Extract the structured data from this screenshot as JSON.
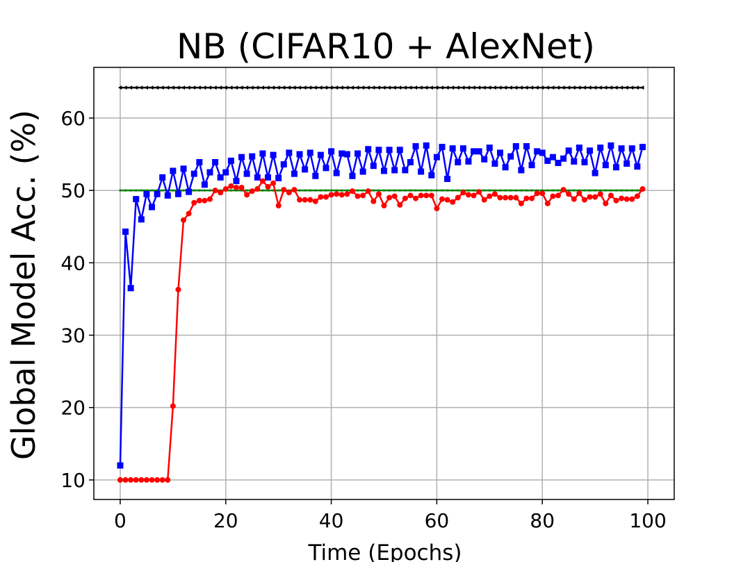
{
  "chart_data": {
    "type": "line",
    "title": "NB (CIFAR10 + AlexNet)",
    "x_label": "Time (Epochs)",
    "y_label": "Global Model Acc. (%)",
    "x": [
      0,
      1,
      2,
      3,
      4,
      5,
      6,
      7,
      8,
      9,
      10,
      11,
      12,
      13,
      14,
      15,
      16,
      17,
      18,
      19,
      20,
      21,
      22,
      23,
      24,
      25,
      26,
      27,
      28,
      29,
      30,
      31,
      32,
      33,
      34,
      35,
      36,
      37,
      38,
      39,
      40,
      41,
      42,
      43,
      44,
      45,
      46,
      47,
      48,
      49,
      50,
      51,
      52,
      53,
      54,
      55,
      56,
      57,
      58,
      59,
      60,
      61,
      62,
      63,
      64,
      65,
      66,
      67,
      68,
      69,
      70,
      71,
      72,
      73,
      74,
      75,
      76,
      77,
      78,
      79,
      80,
      81,
      82,
      83,
      84,
      85,
      86,
      87,
      88,
      89,
      90,
      91,
      92,
      93,
      94,
      95,
      96,
      97,
      98,
      99
    ],
    "xlim": [
      -5,
      105
    ],
    "xticks": [
      0,
      20,
      40,
      60,
      80,
      100
    ],
    "ylim": [
      7.3,
      67.0
    ],
    "yticks": [
      10,
      20,
      30,
      40,
      50,
      60
    ],
    "grid": true,
    "series": [
      {
        "color": "#000000",
        "marker": "triangle-left",
        "values": [
          64.2,
          64.2,
          64.2,
          64.2,
          64.2,
          64.2,
          64.2,
          64.2,
          64.2,
          64.2,
          64.2,
          64.2,
          64.2,
          64.2,
          64.2,
          64.2,
          64.2,
          64.2,
          64.2,
          64.2,
          64.2,
          64.2,
          64.2,
          64.2,
          64.2,
          64.2,
          64.2,
          64.2,
          64.2,
          64.2,
          64.2,
          64.2,
          64.2,
          64.2,
          64.2,
          64.2,
          64.2,
          64.2,
          64.2,
          64.2,
          64.2,
          64.2,
          64.2,
          64.2,
          64.2,
          64.2,
          64.2,
          64.2,
          64.2,
          64.2,
          64.2,
          64.2,
          64.2,
          64.2,
          64.2,
          64.2,
          64.2,
          64.2,
          64.2,
          64.2,
          64.2,
          64.2,
          64.2,
          64.2,
          64.2,
          64.2,
          64.2,
          64.2,
          64.2,
          64.2,
          64.2,
          64.2,
          64.2,
          64.2,
          64.2,
          64.2,
          64.2,
          64.2,
          64.2,
          64.2,
          64.2,
          64.2,
          64.2,
          64.2,
          64.2,
          64.2,
          64.2,
          64.2,
          64.2,
          64.2,
          64.2,
          64.2,
          64.2,
          64.2,
          64.2,
          64.2,
          64.2,
          64.2,
          64.2,
          64.2
        ]
      },
      {
        "color": "#008000",
        "marker": "point",
        "values": [
          50,
          50,
          50,
          50,
          50,
          50,
          50,
          50,
          50,
          50,
          50,
          50,
          50,
          50,
          50,
          50,
          50,
          50,
          50,
          50,
          50,
          50,
          50,
          50,
          50,
          50,
          50,
          50,
          50,
          50,
          50,
          50,
          50,
          50,
          50,
          50,
          50,
          50,
          50,
          50,
          50,
          50,
          50,
          50,
          50,
          50,
          50,
          50,
          50,
          50,
          50,
          50,
          50,
          50,
          50,
          50,
          50,
          50,
          50,
          50,
          50,
          50,
          50,
          50,
          50,
          50,
          50,
          50,
          50,
          50,
          50,
          50,
          50,
          50,
          50,
          50,
          50,
          50,
          50,
          50,
          50,
          50,
          50,
          50,
          50,
          50,
          50,
          50,
          50,
          50,
          50,
          50,
          50,
          50,
          50,
          50,
          50,
          50,
          50,
          50
        ]
      },
      {
        "color": "#0000ff",
        "marker": "square",
        "values": [
          12,
          44.3,
          36.5,
          48.8,
          46.0,
          49.5,
          47.7,
          49.5,
          51.8,
          49.3,
          52.7,
          49.5,
          53.0,
          49.8,
          52.3,
          53.9,
          50.8,
          52.5,
          53.9,
          51.8,
          52.5,
          54.1,
          51.3,
          54.6,
          52.3,
          54.7,
          51.8,
          55.1,
          51.8,
          54.9,
          51.7,
          53.6,
          55.2,
          52.3,
          55.0,
          52.9,
          55.2,
          52.0,
          54.9,
          53.1,
          55.4,
          52.4,
          55.1,
          55.0,
          52.0,
          55.1,
          52.6,
          55.7,
          53.4,
          55.6,
          52.7,
          55.6,
          52.8,
          55.6,
          52.8,
          53.9,
          56.1,
          52.6,
          56.2,
          52.1,
          54.6,
          56.0,
          51.6,
          55.8,
          53.9,
          55.8,
          54.0,
          55.4,
          55.4,
          54.3,
          55.9,
          53.7,
          55.2,
          53.2,
          54.7,
          56.1,
          52.8,
          56.1,
          53.5,
          55.4,
          55.2,
          54.1,
          54.6,
          53.8,
          54.4,
          55.5,
          54.0,
          55.9,
          53.9,
          55.5,
          52.4,
          55.9,
          53.5,
          56.2,
          53.2,
          55.8,
          53.7,
          55.8,
          53.3,
          56.0
        ]
      },
      {
        "color": "#ff0000",
        "marker": "circle",
        "values": [
          10,
          10,
          10,
          10,
          10,
          10,
          10,
          10,
          10,
          10,
          20.2,
          36.3,
          45.9,
          46.8,
          48.3,
          48.6,
          48.6,
          48.8,
          50.0,
          49.7,
          50.2,
          50.6,
          50.4,
          50.4,
          49.4,
          49.9,
          50.2,
          51.3,
          50.5,
          51.0,
          47.9,
          50.1,
          49.7,
          50.1,
          48.7,
          48.7,
          48.7,
          48.5,
          49.1,
          49.1,
          49.4,
          49.5,
          49.4,
          49.5,
          49.9,
          49.2,
          49.3,
          49.9,
          48.5,
          49.5,
          47.9,
          49.0,
          49.2,
          48.0,
          48.9,
          49.3,
          48.9,
          49.3,
          49.3,
          49.3,
          47.5,
          48.8,
          48.7,
          48.4,
          49.0,
          49.7,
          49.4,
          49.3,
          49.8,
          48.7,
          49.2,
          49.5,
          49.0,
          49.0,
          49.0,
          49.0,
          48.2,
          48.9,
          48.9,
          49.6,
          49.6,
          48.2,
          49.2,
          49.3,
          50.1,
          49.5,
          48.8,
          49.6,
          48.7,
          49.1,
          49.1,
          49.5,
          48.2,
          49.3,
          48.6,
          48.9,
          48.8,
          48.8,
          49.2,
          50.2
        ]
      }
    ]
  }
}
